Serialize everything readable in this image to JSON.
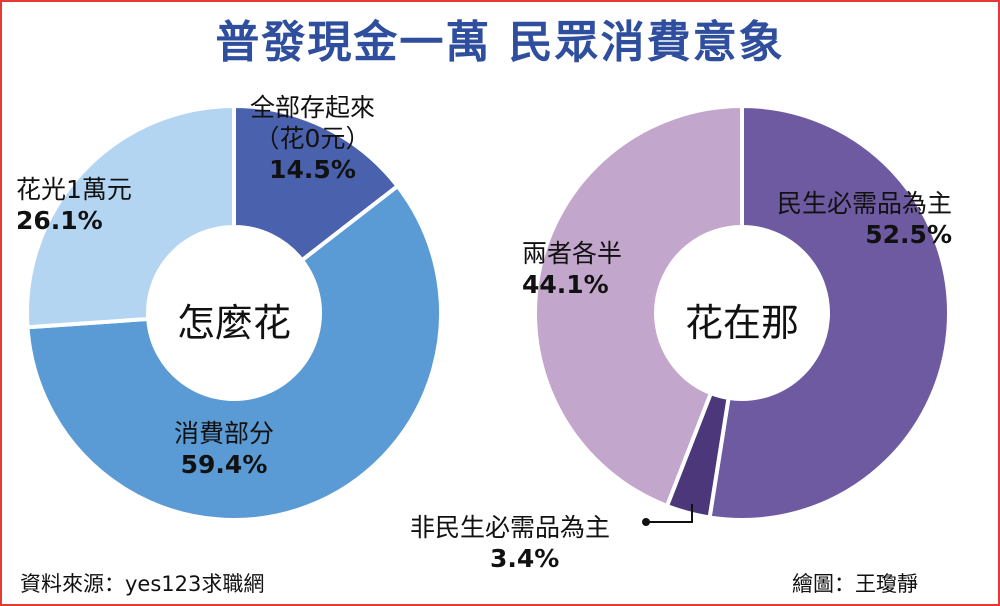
{
  "title": "普發現金一萬  民眾消費意象",
  "source": "資料來源：yes123求職網",
  "credit": "繪圖：王瓊靜",
  "colors": {
    "border": "#e53935",
    "title": "#2f4f9e",
    "left": [
      "#4a62ad",
      "#5b9bd5",
      "#b4d5f2"
    ],
    "right": [
      "#6e5aa0",
      "#4b3779",
      "#c3a6cc"
    ]
  },
  "chart_data": [
    {
      "type": "pie",
      "title": "怎麼花",
      "slices": [
        {
          "label": "全部存起來",
          "sublabel": "（花0元）",
          "value": 14.5,
          "display": "14.5%"
        },
        {
          "label": "消費部分",
          "value": 59.4,
          "display": "59.4%"
        },
        {
          "label": "花光1萬元",
          "value": 26.1,
          "display": "26.1%"
        }
      ]
    },
    {
      "type": "pie",
      "title": "花在那",
      "slices": [
        {
          "label": "民生必需品為主",
          "value": 52.5,
          "display": "52.5%"
        },
        {
          "label": "非民生必需品為主",
          "value": 3.4,
          "display": "3.4%"
        },
        {
          "label": "兩者各半",
          "value": 44.1,
          "display": "44.1%"
        }
      ]
    }
  ]
}
